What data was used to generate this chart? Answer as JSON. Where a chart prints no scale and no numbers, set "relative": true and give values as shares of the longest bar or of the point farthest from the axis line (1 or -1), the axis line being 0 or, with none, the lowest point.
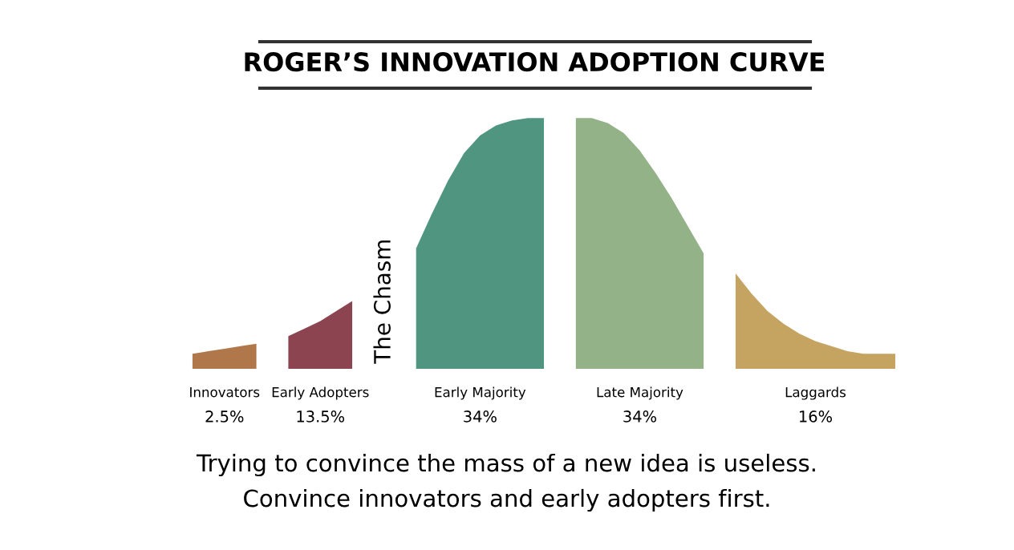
{
  "chart_data": {
    "type": "area",
    "relative": true,
    "title": "ROGER’S INNOVATION ADOPTION CURVE",
    "categories": [
      null,
      null,
      null,
      null,
      null,
      null,
      null,
      null,
      null,
      null,
      null,
      null,
      null,
      null,
      null,
      null,
      null,
      null,
      null,
      null,
      null,
      null,
      null,
      null,
      null,
      null,
      null,
      null,
      null,
      null,
      null,
      null,
      null,
      null,
      null,
      null,
      null,
      null,
      null,
      null,
      null,
      null,
      null,
      null,
      null
    ],
    "series": [
      {
        "name": "Innovators",
        "color": "#b0784a",
        "values": [
          0.06,
          0.07,
          0.08,
          0.09,
          0.1,
          null,
          null,
          null,
          null,
          null,
          null,
          null,
          null,
          null,
          null,
          null,
          null,
          null,
          null,
          null,
          null,
          null,
          null,
          null,
          null,
          null,
          null,
          null,
          null,
          null,
          null,
          null,
          null,
          null,
          null,
          null,
          null,
          null,
          null,
          null,
          null,
          null,
          null,
          null,
          null
        ]
      },
      {
        "name": "Early Adopters",
        "color": "#8c4450",
        "values": [
          null,
          null,
          null,
          null,
          null,
          null,
          0.13,
          0.16,
          0.19,
          0.23,
          0.27,
          null,
          null,
          null,
          null,
          null,
          null,
          null,
          null,
          null,
          null,
          null,
          null,
          null,
          null,
          null,
          null,
          null,
          null,
          null,
          null,
          null,
          null,
          null,
          null,
          null,
          null,
          null,
          null,
          null,
          null,
          null,
          null,
          null,
          null
        ]
      },
      {
        "name": "Early Majority",
        "color": "#4f9580",
        "values": [
          null,
          null,
          null,
          null,
          null,
          null,
          null,
          null,
          null,
          null,
          null,
          null,
          null,
          null,
          0.48,
          0.62,
          0.75,
          0.86,
          0.93,
          0.97,
          0.99,
          1.0,
          1.0,
          null,
          null,
          null,
          null,
          null,
          null,
          null,
          null,
          null,
          null,
          null,
          null,
          null,
          null,
          null,
          null,
          null,
          null,
          null,
          null,
          null,
          null
        ]
      },
      {
        "name": "Late Majority",
        "color": "#93b287",
        "values": [
          null,
          null,
          null,
          null,
          null,
          null,
          null,
          null,
          null,
          null,
          null,
          null,
          null,
          null,
          null,
          null,
          null,
          null,
          null,
          null,
          null,
          null,
          null,
          null,
          1.0,
          1.0,
          0.98,
          0.94,
          0.87,
          0.78,
          0.68,
          0.57,
          0.46,
          null,
          null,
          null,
          null,
          null,
          null,
          null,
          null,
          null,
          null,
          null,
          null
        ]
      },
      {
        "name": "Laggards",
        "color": "#c4a460",
        "values": [
          null,
          null,
          null,
          null,
          null,
          null,
          null,
          null,
          null,
          null,
          null,
          null,
          null,
          null,
          null,
          null,
          null,
          null,
          null,
          null,
          null,
          null,
          null,
          null,
          null,
          null,
          null,
          null,
          null,
          null,
          null,
          null,
          null,
          null,
          0.38,
          0.3,
          0.23,
          0.18,
          0.14,
          0.11,
          0.09,
          0.07,
          0.06,
          0.06,
          0.06
        ]
      }
    ],
    "annotations": [
      "2.5%",
      "13.5%",
      "34%",
      "34%",
      "16%",
      "The Chasm",
      "Trying to convince the mass of a new idea is useless.",
      "Convince innovators and early adopters first."
    ]
  }
}
